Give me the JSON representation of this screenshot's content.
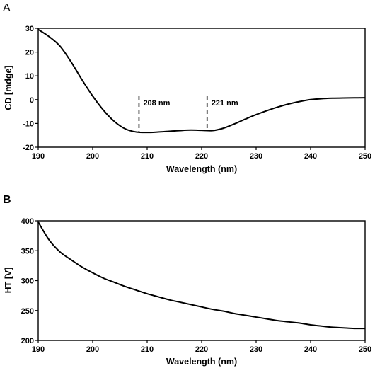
{
  "chart_data": [
    {
      "panel_label": "A",
      "type": "line",
      "xlabel": "Wavelength (nm)",
      "ylabel": "CD [mdge]",
      "xlim": [
        190,
        250
      ],
      "ylim": [
        -20,
        30
      ],
      "xticks": [
        190,
        200,
        210,
        220,
        230,
        240,
        250
      ],
      "yticks": [
        -20,
        -10,
        0,
        10,
        20,
        30
      ],
      "grid": false,
      "series": [
        {
          "x": [
            190,
            192,
            194,
            196,
            198,
            200,
            202,
            204,
            206,
            208,
            210,
            212,
            214,
            216,
            218,
            220,
            222,
            224,
            226,
            228,
            230,
            232,
            234,
            236,
            238,
            240,
            242,
            244,
            246,
            248,
            250
          ],
          "y": [
            29.5,
            26.5,
            22.5,
            16,
            8.5,
            1.5,
            -4.5,
            -9.2,
            -12.3,
            -13.6,
            -13.8,
            -13.6,
            -13.3,
            -13.0,
            -12.8,
            -12.9,
            -13.0,
            -12.0,
            -10.2,
            -8.2,
            -6.3,
            -4.6,
            -3.1,
            -1.8,
            -0.8,
            0,
            0.4,
            0.6,
            0.7,
            0.75,
            0.8
          ]
        }
      ],
      "annotations": [
        {
          "x": 208.5,
          "label": "208 nm",
          "style": "dashed-vertical"
        },
        {
          "x": 221,
          "label": "221 nm",
          "style": "dashed-vertical"
        }
      ]
    },
    {
      "panel_label": "B",
      "type": "line",
      "xlabel": "Wavelength (nm)",
      "ylabel": "HT [V]",
      "xlim": [
        190,
        250
      ],
      "ylim": [
        200,
        400
      ],
      "xticks": [
        190,
        200,
        210,
        220,
        230,
        240,
        250
      ],
      "yticks": [
        200,
        250,
        300,
        350,
        400
      ],
      "grid": false,
      "series": [
        {
          "x": [
            190,
            192,
            194,
            196,
            198,
            200,
            202,
            204,
            206,
            208,
            210,
            212,
            214,
            216,
            218,
            220,
            222,
            224,
            226,
            228,
            230,
            232,
            234,
            236,
            238,
            240,
            242,
            244,
            246,
            248,
            250
          ],
          "y": [
            398,
            368,
            348,
            335,
            323,
            313,
            304,
            297,
            290,
            284,
            278,
            273,
            268,
            264,
            260,
            256,
            252,
            249,
            245,
            242,
            239,
            236,
            233,
            231,
            229,
            226,
            224,
            222,
            221,
            220,
            220
          ]
        }
      ],
      "annotations": []
    }
  ]
}
